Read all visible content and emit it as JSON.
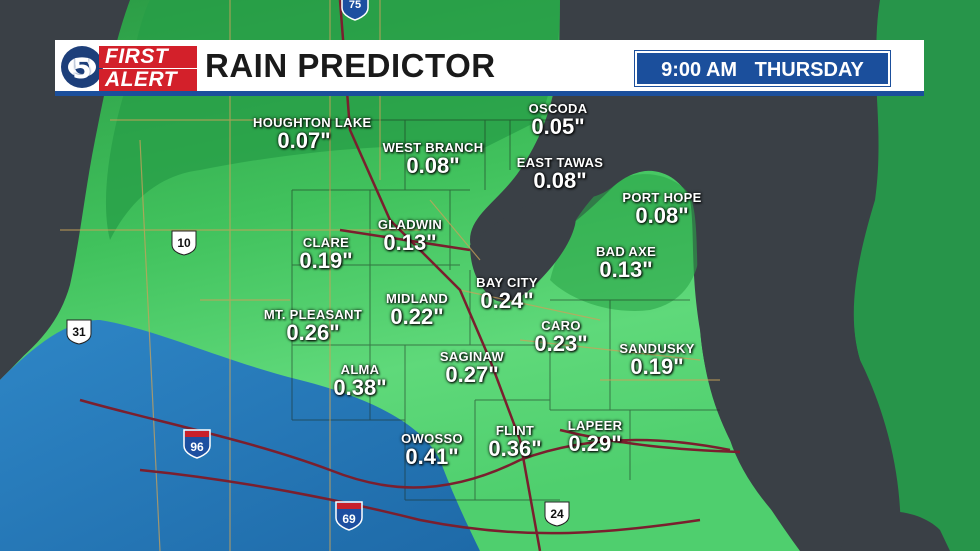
{
  "header": {
    "logo_number": "5",
    "logo_word1": "FIRST",
    "logo_word2": "ALERT",
    "title": "RAIN PREDICTOR",
    "time": "9:00 AM",
    "day": "THURSDAY"
  },
  "colors": {
    "land_base": "#2f9e46",
    "light_green": "#5fd97a",
    "mid_green": "#3cbf5a",
    "dark_green": "#1f8a3a",
    "blue_rain": "#2577b8",
    "water": "#3a4046",
    "header_blue": "#1b4f9c",
    "highway": "#7a1f2e"
  },
  "locations": [
    {
      "name": "HOUGHTON LAKE",
      "value": "0.07\""
    },
    {
      "name": "WEST BRANCH",
      "value": "0.08\""
    },
    {
      "name": "OSCODA",
      "value": "0.05\""
    },
    {
      "name": "EAST TAWAS",
      "value": "0.08\""
    },
    {
      "name": "PORT HOPE",
      "value": "0.08\""
    },
    {
      "name": "GLADWIN",
      "value": "0.13\""
    },
    {
      "name": "CLARE",
      "value": "0.19\""
    },
    {
      "name": "BAD AXE",
      "value": "0.13\""
    },
    {
      "name": "BAY CITY",
      "value": "0.24\""
    },
    {
      "name": "MIDLAND",
      "value": "0.22\""
    },
    {
      "name": "MT. PLEASANT",
      "value": "0.26\""
    },
    {
      "name": "CARO",
      "value": "0.23\""
    },
    {
      "name": "SANDUSKY",
      "value": "0.19\""
    },
    {
      "name": "SAGINAW",
      "value": "0.27\""
    },
    {
      "name": "ALMA",
      "value": "0.38\""
    },
    {
      "name": "LAPEER",
      "value": "0.29\""
    },
    {
      "name": "FLINT",
      "value": "0.36\""
    },
    {
      "name": "OWOSSO",
      "value": "0.41\""
    }
  ],
  "highway_shields": [
    {
      "name": "10",
      "kind": "us-route"
    },
    {
      "name": "31",
      "kind": "us-route"
    },
    {
      "name": "96",
      "kind": "interstate"
    },
    {
      "name": "69",
      "kind": "interstate"
    },
    {
      "name": "24",
      "kind": "us-route"
    },
    {
      "name": "75",
      "kind": "interstate"
    }
  ]
}
